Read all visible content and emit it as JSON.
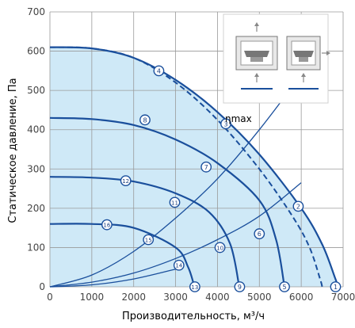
{
  "chart_data": {
    "type": "line",
    "xlabel": "Производительность, м³/ч",
    "ylabel": "Статическое давление, Па",
    "xlim": [
      0,
      7000
    ],
    "ylim": [
      0,
      700
    ],
    "x_ticks": [
      "0",
      "1000",
      "2000",
      "3000",
      "4000",
      "5000",
      "6000",
      "7000"
    ],
    "y_ticks": [
      "0",
      "100",
      "200",
      "300",
      "400",
      "500",
      "600",
      "700"
    ],
    "grid": true,
    "fill_color": "#cfe9f7",
    "curve_color": "#1a4f9c",
    "eta_label": "ηmax",
    "fan_curves": [
      {
        "name": "max",
        "points": [
          [
            0,
            610
          ],
          [
            1000,
            607
          ],
          [
            2000,
            583
          ],
          [
            3000,
            527
          ],
          [
            4000,
            445
          ],
          [
            5000,
            337
          ],
          [
            6000,
            200
          ],
          [
            6500,
            108
          ],
          [
            6800,
            25
          ],
          [
            6880,
            0
          ]
        ]
      },
      {
        "name": "dashed",
        "points": [
          [
            0,
            610
          ],
          [
            1000,
            607
          ],
          [
            2000,
            583
          ],
          [
            3000,
            520
          ],
          [
            4000,
            425
          ],
          [
            5000,
            300
          ],
          [
            5800,
            178
          ],
          [
            6200,
            100
          ],
          [
            6450,
            20
          ],
          [
            6500,
            0
          ]
        ]
      },
      {
        "name": "curve-800",
        "points": [
          [
            0,
            430
          ],
          [
            1000,
            427
          ],
          [
            2000,
            412
          ],
          [
            3000,
            375
          ],
          [
            4000,
            315
          ],
          [
            5000,
            220
          ],
          [
            5400,
            120
          ],
          [
            5600,
            0
          ]
        ]
      },
      {
        "name": "curve-600",
        "points": [
          [
            0,
            280
          ],
          [
            1000,
            278
          ],
          [
            2000,
            268
          ],
          [
            3000,
            238
          ],
          [
            3800,
            190
          ],
          [
            4300,
            110
          ],
          [
            4520,
            0
          ]
        ]
      },
      {
        "name": "curve-400",
        "points": [
          [
            0,
            160
          ],
          [
            1000,
            160
          ],
          [
            2000,
            150
          ],
          [
            3000,
            100
          ],
          [
            3300,
            50
          ],
          [
            3450,
            0
          ]
        ]
      }
    ],
    "system_curves": [
      {
        "name": "sys-1",
        "points": [
          [
            0,
            0
          ],
          [
            1000,
            30
          ],
          [
            2000,
            90
          ],
          [
            3000,
            175
          ],
          [
            4000,
            275
          ],
          [
            5000,
            400
          ],
          [
            6000,
            540
          ]
        ]
      },
      {
        "name": "sys-2",
        "points": [
          [
            0,
            0
          ],
          [
            1000,
            12
          ],
          [
            2000,
            35
          ],
          [
            3000,
            72
          ],
          [
            4000,
            120
          ],
          [
            5000,
            180
          ],
          [
            6000,
            265
          ]
        ]
      },
      {
        "name": "sys-3",
        "points": [
          [
            0,
            0
          ],
          [
            1000,
            5
          ],
          [
            2000,
            20
          ],
          [
            3000,
            45
          ]
        ]
      }
    ],
    "operating_points": [
      {
        "label": "1",
        "x": 6820,
        "y": 0
      },
      {
        "label": "2",
        "x": 5930,
        "y": 205
      },
      {
        "label": "3",
        "x": 4200,
        "y": 415
      },
      {
        "label": "4",
        "x": 2600,
        "y": 550
      },
      {
        "label": "5",
        "x": 5600,
        "y": 0
      },
      {
        "label": "6",
        "x": 5000,
        "y": 135
      },
      {
        "label": "7",
        "x": 3730,
        "y": 305
      },
      {
        "label": "8",
        "x": 2270,
        "y": 425
      },
      {
        "label": "9",
        "x": 4530,
        "y": 0
      },
      {
        "label": "10",
        "x": 4060,
        "y": 100
      },
      {
        "label": "11",
        "x": 2980,
        "y": 215
      },
      {
        "label": "12",
        "x": 1810,
        "y": 270
      },
      {
        "label": "13",
        "x": 3460,
        "y": 0
      },
      {
        "label": "14",
        "x": 3080,
        "y": 55
      },
      {
        "label": "15",
        "x": 2350,
        "y": 120
      },
      {
        "label": "16",
        "x": 1360,
        "y": 158
      }
    ],
    "inset": {
      "icons": [
        "fan-vertical-flow-icon",
        "fan-horizontal-flow-icon"
      ]
    }
  }
}
